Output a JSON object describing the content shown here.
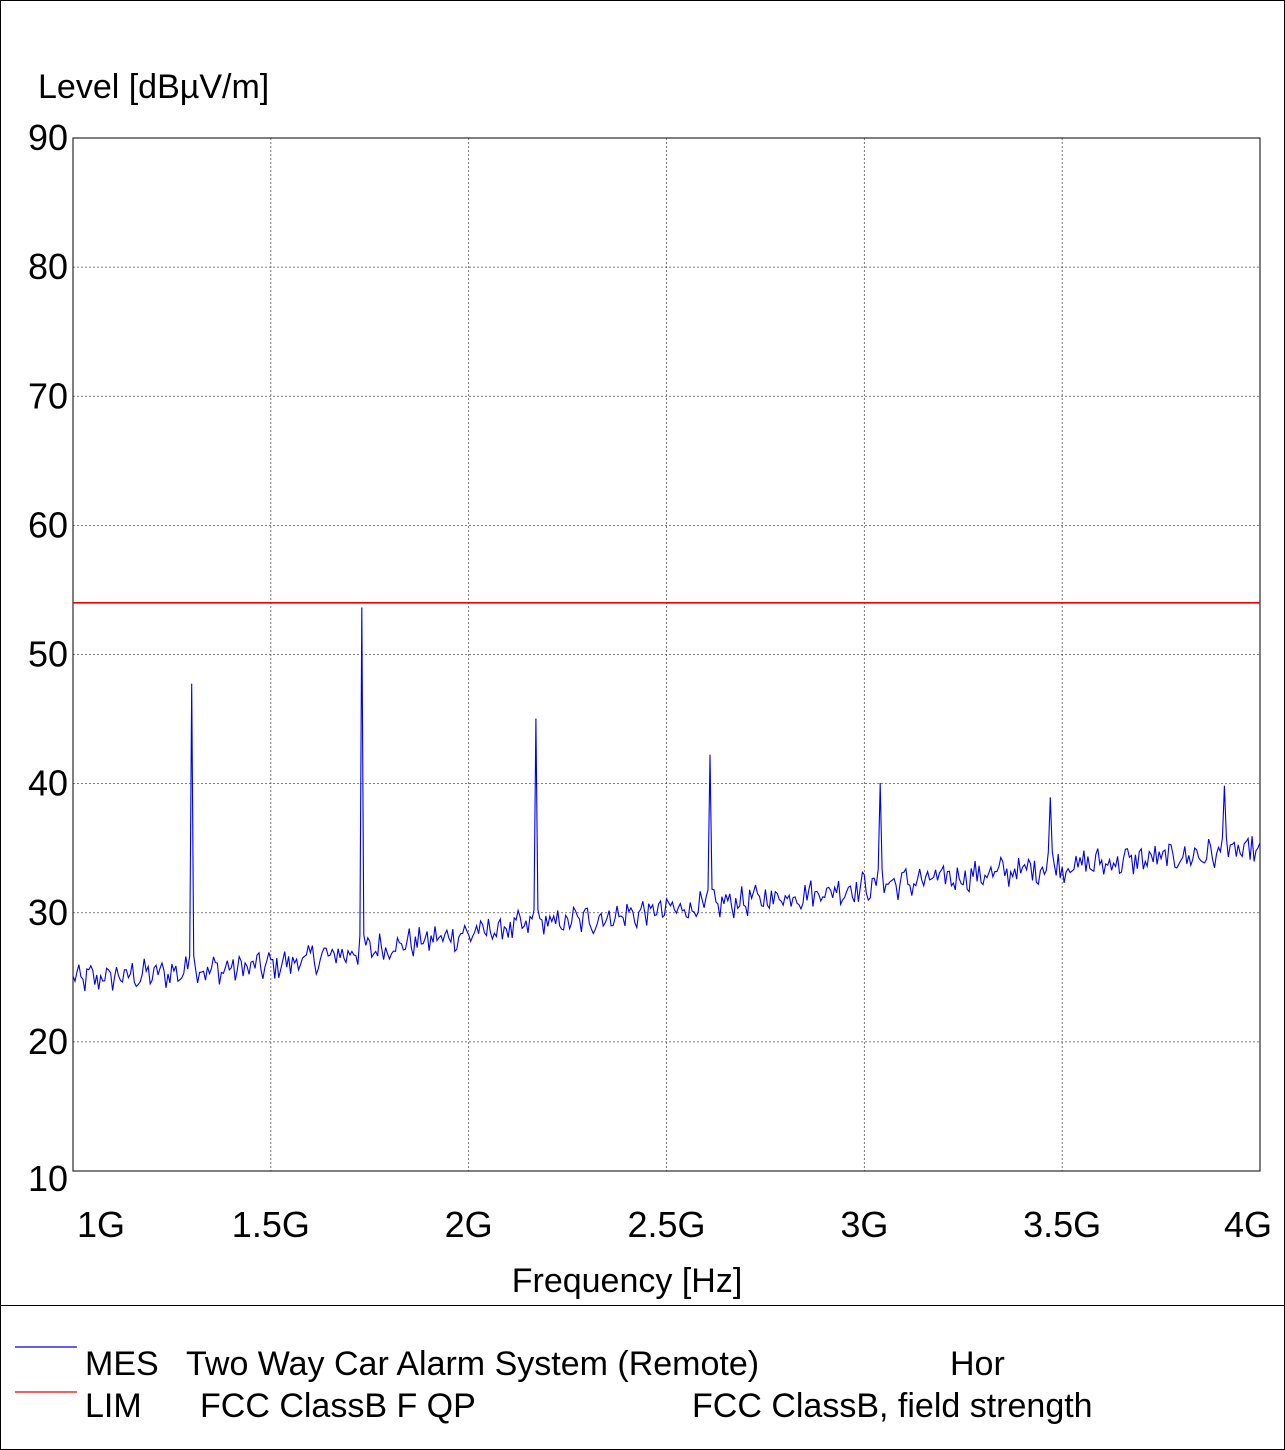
{
  "chart_data": {
    "type": "line",
    "ylabel": "Level [dBµV/m]",
    "xlabel": "Frequency [Hz]",
    "xlim": [
      1.0,
      4.0
    ],
    "ylim": [
      10,
      90
    ],
    "x_unit": "GHz",
    "grid": true,
    "x_ticks": [
      1.0,
      1.5,
      2.0,
      2.5,
      3.0,
      3.5,
      4.0
    ],
    "x_tick_labels": [
      "1G",
      "1.5G",
      "2G",
      "2.5G",
      "3G",
      "3.5G",
      "4G"
    ],
    "y_ticks": [
      10,
      20,
      30,
      40,
      50,
      60,
      70,
      80,
      90
    ],
    "y_tick_labels": [
      "10",
      "20",
      "30",
      "40",
      "50",
      "60",
      "70",
      "80",
      "90"
    ],
    "series": [
      {
        "key": "MES",
        "color": "#0000ee",
        "baseline": [
          [
            1.0,
            24.8
          ],
          [
            1.5,
            25.9
          ],
          [
            2.0,
            28.4
          ],
          [
            2.5,
            30.2
          ],
          [
            3.0,
            32.0
          ],
          [
            3.5,
            33.6
          ],
          [
            4.0,
            34.8
          ]
        ],
        "peaks": [
          [
            1.3,
            47.7
          ],
          [
            1.73,
            53.6
          ],
          [
            2.17,
            45.0
          ],
          [
            2.61,
            42.2
          ],
          [
            3.04,
            40.0
          ],
          [
            3.47,
            38.9
          ],
          [
            3.91,
            39.8
          ]
        ]
      },
      {
        "key": "LIM",
        "color": "#ee0000",
        "points": [
          [
            1.0,
            54.0
          ],
          [
            4.0,
            54.0
          ]
        ]
      }
    ]
  },
  "legend": [
    {
      "col1": "MES",
      "col2": "Two Way Car Alarm System (Remote)",
      "col3": "Hor",
      "color": "#0000ee"
    },
    {
      "col1": "LIM",
      "col2": "FCC ClassB F QP",
      "col3": "FCC ClassB, field strength",
      "color": "#ee0000"
    }
  ]
}
